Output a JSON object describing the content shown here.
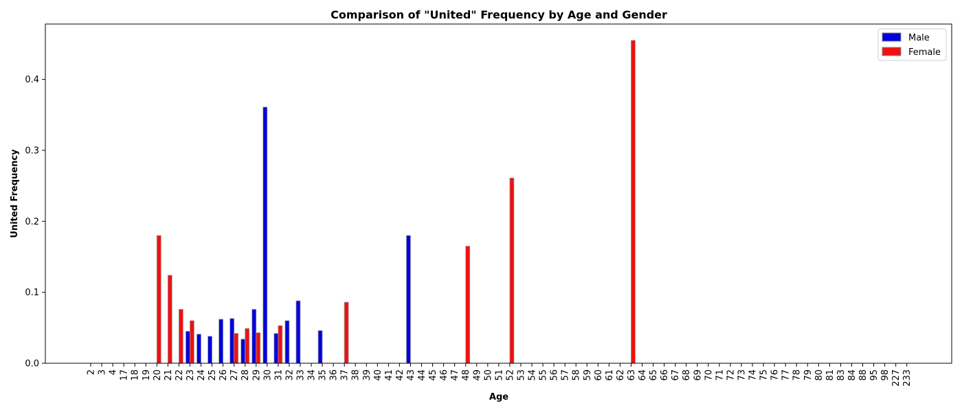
{
  "chart_data": {
    "type": "bar",
    "title": "Comparison of \"United\" Frequency by Age and Gender",
    "xlabel": "Age",
    "ylabel": "United Frequency",
    "ylim": [
      0,
      0.478
    ],
    "yticks": [
      0.0,
      0.1,
      0.2,
      0.3,
      0.4
    ],
    "legend_position": "top-right",
    "grid": false,
    "categories": [
      "2",
      "3",
      "4",
      "17",
      "18",
      "19",
      "20",
      "21",
      "22",
      "23",
      "24",
      "25",
      "26",
      "27",
      "28",
      "29",
      "30",
      "31",
      "32",
      "33",
      "34",
      "35",
      "36",
      "37",
      "38",
      "39",
      "40",
      "41",
      "42",
      "43",
      "44",
      "45",
      "46",
      "47",
      "48",
      "49",
      "50",
      "51",
      "52",
      "53",
      "54",
      "55",
      "56",
      "57",
      "58",
      "59",
      "60",
      "61",
      "62",
      "63",
      "64",
      "65",
      "66",
      "67",
      "68",
      "69",
      "70",
      "71",
      "72",
      "73",
      "74",
      "75",
      "76",
      "77",
      "78",
      "79",
      "80",
      "81",
      "83",
      "84",
      "88",
      "95",
      "98",
      "227",
      "233"
    ],
    "series": [
      {
        "name": "Male",
        "color": "#0000dd",
        "values": [
          0,
          0,
          0,
          0,
          0,
          0,
          0,
          0,
          0,
          0.045,
          0.041,
          0.038,
          0.062,
          0.063,
          0.034,
          0.076,
          0.361,
          0.042,
          0.06,
          0.088,
          0,
          0.046,
          0,
          0,
          0,
          0,
          0,
          0,
          0,
          0.18,
          0,
          0,
          0,
          0,
          0,
          0,
          0,
          0,
          0,
          0,
          0,
          0,
          0,
          0,
          0,
          0,
          0,
          0,
          0,
          0,
          0,
          0,
          0,
          0,
          0,
          0,
          0,
          0,
          0,
          0,
          0,
          0,
          0,
          0,
          0,
          0,
          0,
          0,
          0,
          0,
          0,
          0,
          0,
          0,
          0
        ]
      },
      {
        "name": "Female",
        "color": "#ee1111",
        "values": [
          0,
          0,
          0,
          0,
          0,
          0,
          0.18,
          0.124,
          0.076,
          0.06,
          0,
          0,
          0,
          0.042,
          0.049,
          0.043,
          0,
          0.053,
          0,
          0,
          0,
          0,
          0,
          0.086,
          0,
          0,
          0,
          0,
          0,
          0,
          0,
          0,
          0,
          0,
          0.165,
          0,
          0,
          0,
          0.261,
          0,
          0,
          0,
          0,
          0,
          0,
          0,
          0,
          0,
          0,
          0.455,
          0,
          0,
          0,
          0,
          0,
          0,
          0,
          0,
          0,
          0,
          0,
          0,
          0,
          0,
          0,
          0,
          0,
          0,
          0,
          0,
          0,
          0,
          0,
          0,
          0
        ]
      }
    ]
  }
}
